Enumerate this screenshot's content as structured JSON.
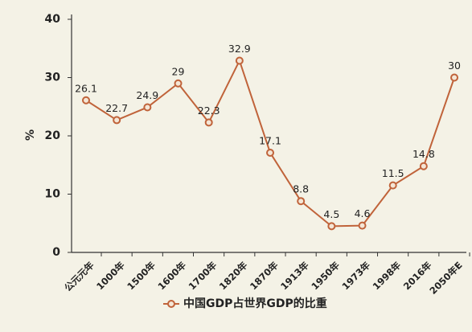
{
  "chart_data": {
    "type": "line",
    "y_label": "%",
    "categories": [
      "公元元年",
      "1000年",
      "1500年",
      "1600年",
      "1700年",
      "1820年",
      "1870年",
      "1913年",
      "1950年",
      "1973年",
      "1998年",
      "2016年",
      "2050年E"
    ],
    "series": [
      {
        "name": "中国GDP占世界GDP的比重",
        "color": "#c0633a",
        "values": [
          26.1,
          22.7,
          24.9,
          29,
          22.3,
          32.9,
          17.1,
          8.8,
          4.5,
          4.6,
          11.5,
          14.8,
          30
        ]
      }
    ],
    "ylim": [
      0,
      40
    ],
    "yticks": [
      0,
      10,
      20,
      30,
      40
    ],
    "grid": false
  }
}
